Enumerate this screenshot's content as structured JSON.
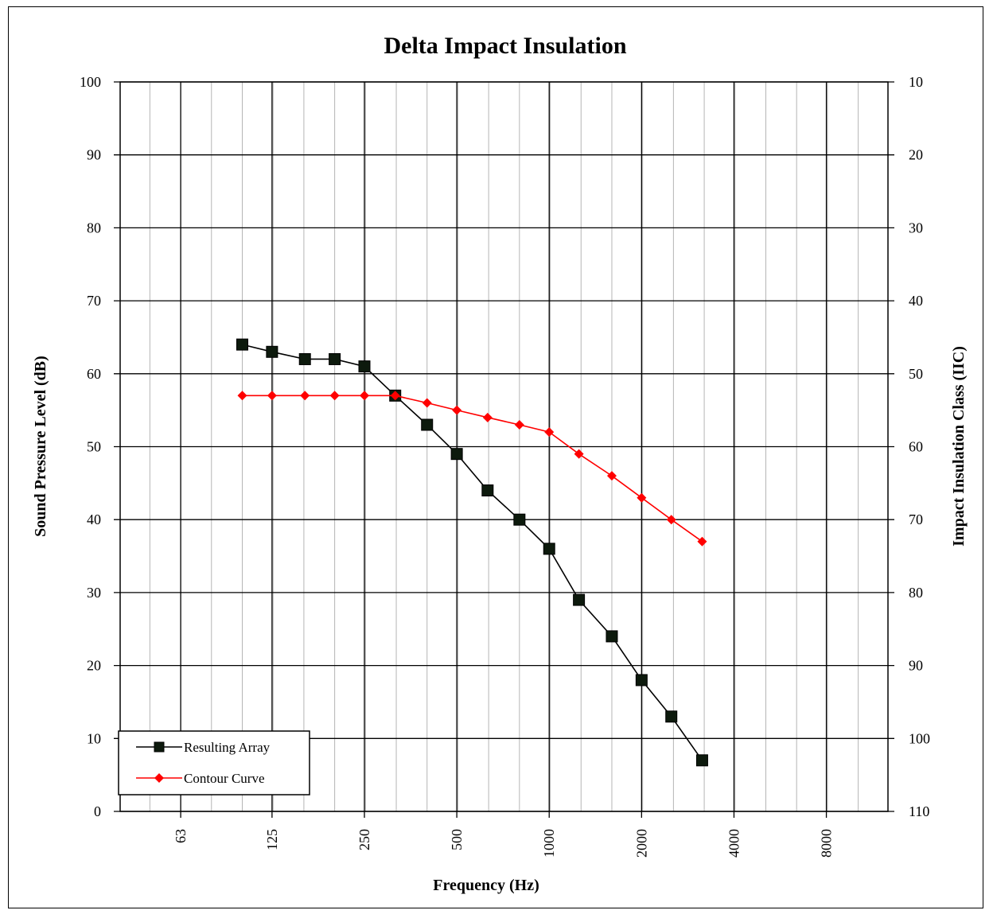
{
  "chart_data": {
    "type": "line",
    "title": "Delta Impact Insulation",
    "xlabel": "Frequency (Hz)",
    "ylabel": "Sound Pressure Level (dB)",
    "y2label": "Impact Insulation Class (IIC)",
    "x_scale": "log (third-octave bands)",
    "x_tick_labels": [
      "63",
      "125",
      "250",
      "500",
      "1000",
      "2000",
      "4000",
      "8000"
    ],
    "y_ticks": [
      0,
      10,
      20,
      30,
      40,
      50,
      60,
      70,
      80,
      90,
      100
    ],
    "y2_ticks": [
      110,
      100,
      90,
      80,
      70,
      60,
      50,
      40,
      30,
      20,
      10
    ],
    "ylim": [
      0,
      100
    ],
    "y2lim": [
      110,
      10
    ],
    "x": [
      100,
      125,
      160,
      200,
      250,
      315,
      400,
      500,
      630,
      800,
      1000,
      1250,
      1600,
      2000,
      2500,
      3150
    ],
    "series": [
      {
        "name": "Resulting Array",
        "color": "#000000",
        "marker": "square",
        "values": [
          64,
          63,
          62,
          62,
          61,
          57,
          53,
          49,
          44,
          40,
          36,
          29,
          24,
          18,
          13,
          7
        ]
      },
      {
        "name": "Contour Curve",
        "color": "#ff0000",
        "marker": "diamond",
        "values": [
          57,
          57,
          57,
          57,
          57,
          57,
          56,
          55,
          54,
          53,
          52,
          49,
          46,
          43,
          40,
          37
        ]
      }
    ],
    "grid": true,
    "legend_position": "bottom-left"
  }
}
